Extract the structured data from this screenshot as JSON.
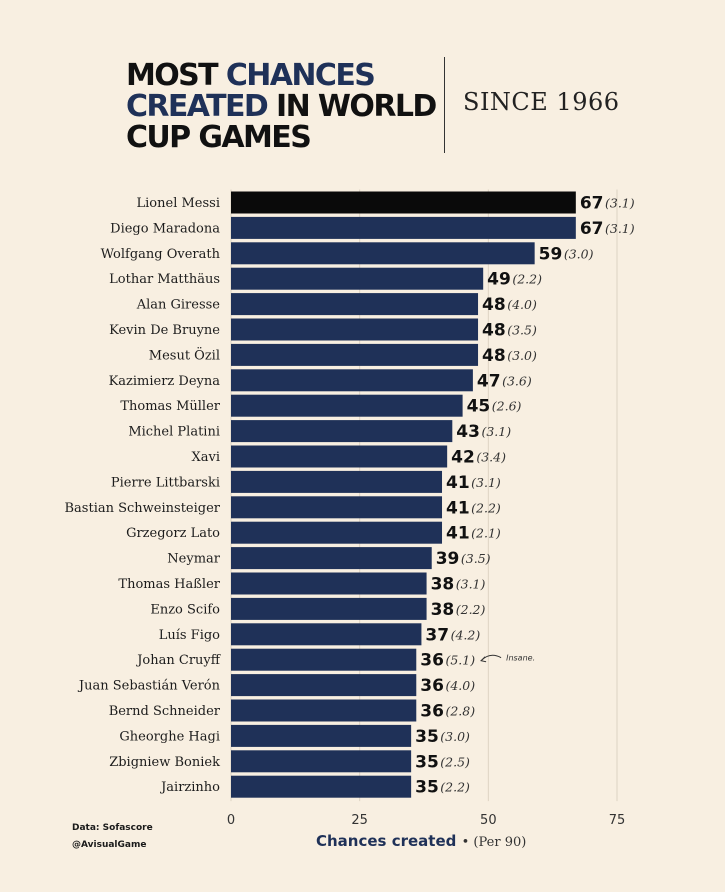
{
  "title": {
    "line1_plain": "MOST ",
    "line1_accent": "CHANCES",
    "line2_accent": "CREATED",
    "line2_plain": " IN WORLD",
    "line3_plain": "CUP GAMES",
    "since": "SINCE 1966"
  },
  "credits": {
    "source": "Data: Sofascore",
    "handle": "@AvisualGame"
  },
  "colors": {
    "highlight_bar": "#0a0a0a",
    "bar": "#1f3158",
    "accent": "#1f3158",
    "background": "#f8efe1"
  },
  "chart_data": {
    "type": "bar",
    "orientation": "horizontal",
    "categories": [
      "Lionel Messi",
      "Diego Maradona",
      "Wolfgang Overath",
      "Lothar Matthäus",
      "Alan Giresse",
      "Kevin De Bruyne",
      "Mesut Özil",
      "Kazimierz Deyna",
      "Thomas Müller",
      "Michel Platini",
      "Xavi",
      "Pierre Littbarski",
      "Bastian Schweinsteiger",
      "Grzegorz Lato",
      "Neymar",
      "Thomas Haßler",
      "Enzo Scifo",
      "Luís Figo",
      "Johan Cruyff",
      "Juan Sebastián Verón",
      "Bernd Schneider",
      "Gheorghe Hagi",
      "Zbigniew Boniek",
      "Jairzinho"
    ],
    "values": [
      67,
      67,
      59,
      49,
      48,
      48,
      48,
      47,
      45,
      43,
      42,
      41,
      41,
      41,
      39,
      38,
      38,
      37,
      36,
      36,
      36,
      35,
      35,
      35
    ],
    "per90": [
      "(3.1)",
      "(3.1)",
      "(3.0)",
      "(2.2)",
      "(4.0)",
      "(3.5)",
      "(3.0)",
      "(3.6)",
      "(2.6)",
      "(3.1)",
      "(3.4)",
      "(3.1)",
      "(2.2)",
      "(2.1)",
      "(3.5)",
      "(3.1)",
      "(2.2)",
      "(4.2)",
      "(5.1)",
      "(4.0)",
      "(2.8)",
      "(3.0)",
      "(2.5)",
      "(2.2)"
    ],
    "highlight_index": 0,
    "xlim": [
      0,
      75
    ],
    "xticks": [
      0,
      25,
      50,
      75
    ],
    "xlabel": "Chances created",
    "xlabel_sub": "(Per 90)",
    "grid": true,
    "annotation": {
      "index": 18,
      "text": "Insane."
    }
  }
}
